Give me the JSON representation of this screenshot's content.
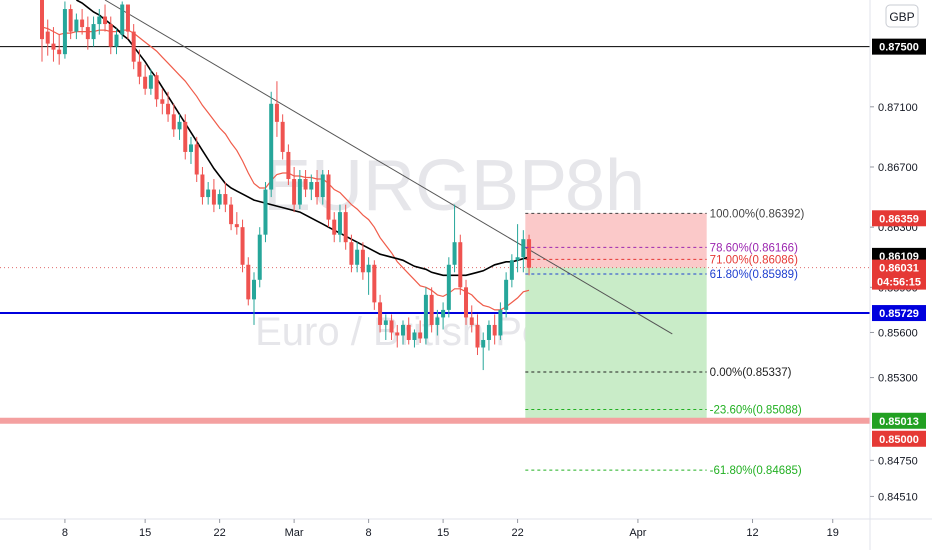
{
  "symbol": "EURGBP",
  "interval": "8h",
  "description": "Euro / British Pound",
  "currency_badge": "GBP",
  "colors": {
    "up_candle": "#26a69a",
    "down_candle": "#ef5350",
    "ema_fast": "#f05c4a",
    "ema_slow": "#000000",
    "trendline": "#555555",
    "support_line": "#0000dd",
    "resistance_line": "#000000",
    "stop_zone": "#fbc9c9",
    "target_zone": "#c9ecc8",
    "pink_band": "#f4a0a0",
    "current_price_label": "#d32f2f"
  },
  "chart_data": {
    "type": "candlestick",
    "title": "EURGBP 8h",
    "subtitle": "Euro / British Pound",
    "y_range": [
      0.8436,
      0.8781
    ],
    "x_ticks": [
      "8",
      "15",
      "22",
      "Mar",
      "8",
      "15",
      "22",
      "Apr",
      "12",
      "19"
    ],
    "y_ticks": [
      "0.87100",
      "0.86700",
      "0.86300",
      "0.85900",
      "0.85600",
      "0.85300",
      "0.84750",
      "0.84510"
    ],
    "candles_ohlc": [
      [
        0.8781,
        0.8781,
        0.874,
        0.8755
      ],
      [
        0.876,
        0.8768,
        0.8744,
        0.8752
      ],
      [
        0.8752,
        0.8763,
        0.874,
        0.8748
      ],
      [
        0.8748,
        0.8758,
        0.8738,
        0.8745
      ],
      [
        0.8745,
        0.878,
        0.8742,
        0.8775
      ],
      [
        0.8775,
        0.8778,
        0.8755,
        0.876
      ],
      [
        0.876,
        0.8772,
        0.8755,
        0.8768
      ],
      [
        0.8768,
        0.8775,
        0.8758,
        0.8763
      ],
      [
        0.8763,
        0.877,
        0.8748,
        0.8755
      ],
      [
        0.8755,
        0.877,
        0.875,
        0.8765
      ],
      [
        0.8765,
        0.8775,
        0.8758,
        0.877
      ],
      [
        0.877,
        0.8778,
        0.876,
        0.8765
      ],
      [
        0.8765,
        0.877,
        0.8745,
        0.875
      ],
      [
        0.875,
        0.8762,
        0.8745,
        0.8758
      ],
      [
        0.8758,
        0.878,
        0.8755,
        0.8778
      ],
      [
        0.8778,
        0.8778,
        0.8755,
        0.876
      ],
      [
        0.876,
        0.8765,
        0.8735,
        0.874
      ],
      [
        0.874,
        0.8748,
        0.8725,
        0.873
      ],
      [
        0.873,
        0.8738,
        0.8718,
        0.8722
      ],
      [
        0.8722,
        0.8735,
        0.8718,
        0.8731
      ],
      [
        0.8731,
        0.8733,
        0.871,
        0.8715
      ],
      [
        0.8715,
        0.8722,
        0.8705,
        0.8712
      ],
      [
        0.8712,
        0.872,
        0.87,
        0.8705
      ],
      [
        0.8705,
        0.8712,
        0.869,
        0.8695
      ],
      [
        0.8695,
        0.8705,
        0.8688,
        0.87
      ],
      [
        0.87,
        0.8705,
        0.8675,
        0.868
      ],
      [
        0.868,
        0.869,
        0.8672,
        0.8685
      ],
      [
        0.8685,
        0.869,
        0.866,
        0.8665
      ],
      [
        0.8665,
        0.867,
        0.8645,
        0.865
      ],
      [
        0.865,
        0.866,
        0.8645,
        0.8655
      ],
      [
        0.8655,
        0.8662,
        0.864,
        0.8645
      ],
      [
        0.8645,
        0.8655,
        0.8642,
        0.8652
      ],
      [
        0.8652,
        0.866,
        0.864,
        0.8645
      ],
      [
        0.8645,
        0.865,
        0.8628,
        0.8632
      ],
      [
        0.8632,
        0.864,
        0.8625,
        0.863
      ],
      [
        0.863,
        0.8635,
        0.86,
        0.8605
      ],
      [
        0.8605,
        0.861,
        0.8578,
        0.8582
      ],
      [
        0.8582,
        0.86,
        0.8565,
        0.8595
      ],
      [
        0.8595,
        0.863,
        0.859,
        0.8625
      ],
      [
        0.8625,
        0.866,
        0.862,
        0.8655
      ],
      [
        0.8655,
        0.872,
        0.865,
        0.8712
      ],
      [
        0.8712,
        0.8727,
        0.869,
        0.87
      ],
      [
        0.87,
        0.8705,
        0.8675,
        0.868
      ],
      [
        0.868,
        0.8685,
        0.8658,
        0.8662
      ],
      [
        0.8662,
        0.867,
        0.864,
        0.8645
      ],
      [
        0.8645,
        0.8668,
        0.8642,
        0.8662
      ],
      [
        0.8662,
        0.8668,
        0.865,
        0.8655
      ],
      [
        0.8655,
        0.8665,
        0.8648,
        0.866
      ],
      [
        0.866,
        0.8668,
        0.8645,
        0.865
      ],
      [
        0.865,
        0.8668,
        0.8645,
        0.8665
      ],
      [
        0.8665,
        0.8668,
        0.863,
        0.8635
      ],
      [
        0.8635,
        0.864,
        0.862,
        0.8625
      ],
      [
        0.8625,
        0.8645,
        0.862,
        0.864
      ],
      [
        0.864,
        0.8645,
        0.8615,
        0.862
      ],
      [
        0.862,
        0.8625,
        0.86,
        0.8605
      ],
      [
        0.8605,
        0.862,
        0.86,
        0.8615
      ],
      [
        0.8615,
        0.862,
        0.8595,
        0.86
      ],
      [
        0.86,
        0.861,
        0.8585,
        0.8605
      ],
      [
        0.8605,
        0.8608,
        0.8575,
        0.858
      ],
      [
        0.858,
        0.8585,
        0.856,
        0.8565
      ],
      [
        0.8565,
        0.8572,
        0.8555,
        0.8568
      ],
      [
        0.8568,
        0.8572,
        0.8555,
        0.856
      ],
      [
        0.856,
        0.8565,
        0.855,
        0.8558
      ],
      [
        0.8558,
        0.8568,
        0.8552,
        0.8565
      ],
      [
        0.8565,
        0.857,
        0.8552,
        0.8555
      ],
      [
        0.8555,
        0.8562,
        0.855,
        0.856
      ],
      [
        0.856,
        0.8568,
        0.8553,
        0.8556
      ],
      [
        0.8556,
        0.859,
        0.8552,
        0.8585
      ],
      [
        0.8585,
        0.859,
        0.856,
        0.8565
      ],
      [
        0.8565,
        0.8575,
        0.8558,
        0.857
      ],
      [
        0.857,
        0.858,
        0.8562,
        0.8575
      ],
      [
        0.8575,
        0.861,
        0.857,
        0.8605
      ],
      [
        0.8605,
        0.8645,
        0.86,
        0.862
      ],
      [
        0.862,
        0.8625,
        0.8585,
        0.859
      ],
      [
        0.859,
        0.8595,
        0.8565,
        0.857
      ],
      [
        0.857,
        0.8578,
        0.856,
        0.8565
      ],
      [
        0.8565,
        0.8572,
        0.8545,
        0.855
      ],
      [
        0.855,
        0.856,
        0.8535,
        0.8555
      ],
      [
        0.8555,
        0.8568,
        0.8548,
        0.8565
      ],
      [
        0.8565,
        0.8572,
        0.8552,
        0.8558
      ],
      [
        0.8558,
        0.858,
        0.8555,
        0.8575
      ],
      [
        0.8575,
        0.86,
        0.857,
        0.8595
      ],
      [
        0.8595,
        0.8612,
        0.859,
        0.8608
      ],
      [
        0.8608,
        0.8632,
        0.86,
        0.861
      ],
      [
        0.861,
        0.8628,
        0.86,
        0.8622
      ],
      [
        0.8622,
        0.8625,
        0.8598,
        0.8603
      ]
    ],
    "ema_fast_values": [
      0.8763,
      0.8762,
      0.876,
      0.8758,
      0.8759,
      0.8759,
      0.876,
      0.876,
      0.876,
      0.876,
      0.8761,
      0.8761,
      0.876,
      0.876,
      0.8761,
      0.8761,
      0.8759,
      0.8756,
      0.8753,
      0.875,
      0.8747,
      0.8743,
      0.8739,
      0.8735,
      0.8731,
      0.8727,
      0.8722,
      0.8717,
      0.8711,
      0.8706,
      0.8701,
      0.8696,
      0.8692,
      0.8686,
      0.8681,
      0.8674,
      0.8666,
      0.8659,
      0.8656,
      0.8656,
      0.8661,
      0.8665,
      0.8666,
      0.8666,
      0.8664,
      0.8664,
      0.8663,
      0.8663,
      0.8662,
      0.8662,
      0.8659,
      0.8655,
      0.8653,
      0.8649,
      0.8645,
      0.8642,
      0.8638,
      0.8635,
      0.863,
      0.8623,
      0.8618,
      0.8613,
      0.8607,
      0.8603,
      0.8599,
      0.8595,
      0.8591,
      0.859,
      0.8588,
      0.8585,
      0.8584,
      0.8586,
      0.8589,
      0.8589,
      0.8587,
      0.8585,
      0.8581,
      0.8578,
      0.8577,
      0.8575,
      0.8575,
      0.8577,
      0.858,
      0.8583,
      0.8587,
      0.8588
    ],
    "ema_slow_start_index": 6,
    "ema_slow_values": [
      0.8781,
      0.8779,
      0.8776,
      0.8773,
      0.8771,
      0.8768,
      0.8765,
      0.8762,
      0.8758,
      0.8755,
      0.875,
      0.8745,
      0.874,
      0.8734,
      0.8729,
      0.8723,
      0.8717,
      0.8711,
      0.8705,
      0.8699,
      0.8693,
      0.8687,
      0.8681,
      0.8675,
      0.8669,
      0.8664,
      0.8659,
      0.8656,
      0.8654,
      0.8652,
      0.865,
      0.8648,
      0.8647,
      0.8646,
      0.8645,
      0.8644,
      0.8643,
      0.8642,
      0.8641,
      0.864,
      0.8638,
      0.8636,
      0.8634,
      0.8632,
      0.863,
      0.8628,
      0.8626,
      0.8624,
      0.8622,
      0.862,
      0.8618,
      0.8616,
      0.8614,
      0.8612,
      0.8611,
      0.861,
      0.8609,
      0.8608,
      0.8606,
      0.8604,
      0.8603,
      0.8602,
      0.86,
      0.8599,
      0.8598,
      0.8598,
      0.8598,
      0.8598,
      0.8598,
      0.8599,
      0.86,
      0.8601,
      0.8603,
      0.8605,
      0.8606,
      0.8607,
      0.8607,
      0.8608,
      0.8609,
      0.861
    ],
    "trendline": {
      "start": {
        "x_index": 11,
        "price": 0.8781
      },
      "end": {
        "x_index": 110,
        "price": 0.8559
      }
    },
    "horizontal_levels": [
      {
        "name": "resistance",
        "price": 0.875,
        "label": "0.87500"
      },
      {
        "name": "support",
        "price": 0.85729,
        "label": "0.85729"
      },
      {
        "name": "target-band",
        "price": 0.85013,
        "label": "0.85013"
      }
    ],
    "position": {
      "entry": 0.86031,
      "stop": 0.86392,
      "target": 0.85013,
      "start_index": 84,
      "end_index": 116
    },
    "fib_levels": [
      {
        "label": "100.00%(0.86392)",
        "price": 0.86392,
        "color": "#444444"
      },
      {
        "label": "78.60%(0.86166)",
        "price": 0.86166,
        "color": "#9c27b0"
      },
      {
        "label": "71.00%(0.86086)",
        "price": 0.86086,
        "color": "#e53935"
      },
      {
        "label": "61.80%(0.85989)",
        "price": 0.85989,
        "color": "#1e3fd0"
      },
      {
        "label": "0.00%(0.85337)",
        "price": 0.85337,
        "color": "#222222"
      },
      {
        "label": "-23.60%(0.85088)",
        "price": 0.85088,
        "color": "#22b022"
      },
      {
        "label": "-61.80%(0.84685)",
        "price": 0.84685,
        "color": "#22b022"
      }
    ],
    "fib_start_index": 84,
    "fib_end_index": 116,
    "price_labels": [
      {
        "text": "0.87500",
        "bg": "#000000",
        "fg": "#ffffff"
      },
      {
        "text": "0.86359",
        "bg": "#e53935",
        "fg": "#ffffff"
      },
      {
        "text": "0.86109",
        "bg": "#000000",
        "fg": "#ffffff"
      },
      {
        "text": "0.86031",
        "bg": "#e53935",
        "fg": "#ffffff"
      },
      {
        "text": "04:56:15",
        "bg": "#e53935",
        "fg": "#ffffff"
      },
      {
        "text": "0.85729",
        "bg": "#0000dd",
        "fg": "#ffffff"
      },
      {
        "text": "0.85013",
        "bg": "#22a022",
        "fg": "#ffffff"
      },
      {
        "text": "0.85000",
        "bg": "#e53935",
        "fg": "#ffffff"
      }
    ]
  }
}
